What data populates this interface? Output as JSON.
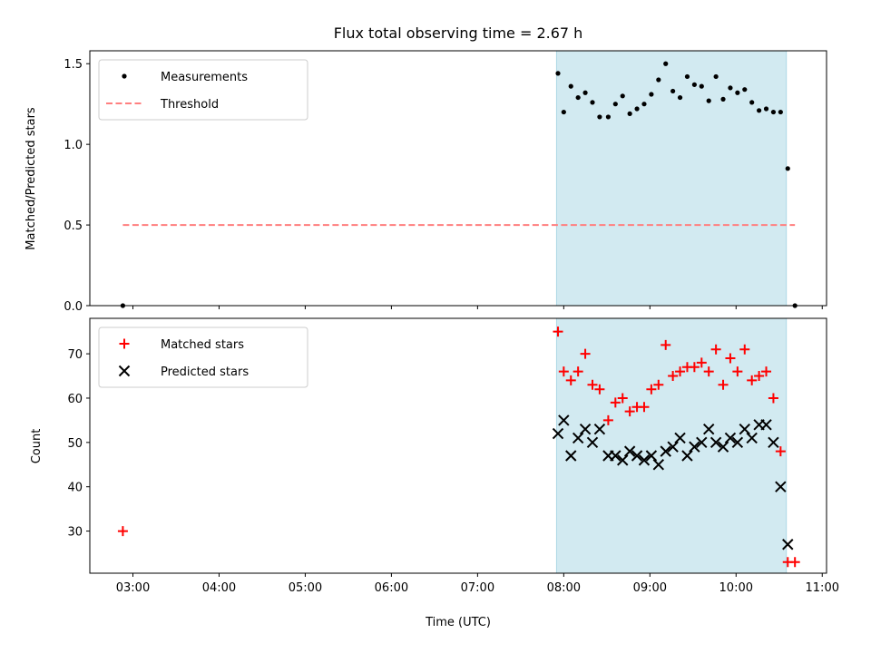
{
  "chart_data": [
    {
      "type": "scatter",
      "title": "Flux total observing time = 2.67 h",
      "ylabel": "Matched/Predicted stars",
      "xlim": [
        "02:30",
        "11:03"
      ],
      "ylim": [
        0,
        1.58
      ],
      "yticks": [
        "0.0",
        "0.5",
        "1.0",
        "1.5"
      ],
      "grid": false,
      "shaded_interval": {
        "start": "07:55",
        "end": "10:35",
        "color": "#add8e6"
      },
      "legend_position": "top-left",
      "series": [
        {
          "name": "Measurements",
          "marker": "dot",
          "color": "#000000",
          "points": [
            [
              "02:53",
              0.0
            ],
            [
              "07:56",
              1.44
            ],
            [
              "08:00",
              1.2
            ],
            [
              "08:05",
              1.36
            ],
            [
              "08:10",
              1.29
            ],
            [
              "08:15",
              1.32
            ],
            [
              "08:20",
              1.26
            ],
            [
              "08:25",
              1.17
            ],
            [
              "08:31",
              1.17
            ],
            [
              "08:36",
              1.25
            ],
            [
              "08:41",
              1.3
            ],
            [
              "08:46",
              1.19
            ],
            [
              "08:51",
              1.22
            ],
            [
              "08:56",
              1.25
            ],
            [
              "09:01",
              1.31
            ],
            [
              "09:06",
              1.4
            ],
            [
              "09:11",
              1.5
            ],
            [
              "09:16",
              1.33
            ],
            [
              "09:21",
              1.29
            ],
            [
              "09:26",
              1.42
            ],
            [
              "09:31",
              1.37
            ],
            [
              "09:36",
              1.36
            ],
            [
              "09:41",
              1.27
            ],
            [
              "09:46",
              1.42
            ],
            [
              "09:51",
              1.28
            ],
            [
              "09:56",
              1.35
            ],
            [
              "10:01",
              1.32
            ],
            [
              "10:06",
              1.34
            ],
            [
              "10:11",
              1.26
            ],
            [
              "10:16",
              1.21
            ],
            [
              "10:21",
              1.22
            ],
            [
              "10:26",
              1.2
            ],
            [
              "10:31",
              1.2
            ],
            [
              "10:36",
              0.85
            ],
            [
              "10:41",
              0.0
            ]
          ]
        },
        {
          "name": "Threshold",
          "style": "dashed",
          "color": "#ff7f7f",
          "points": [
            [
              "02:53",
              0.5
            ],
            [
              "10:41",
              0.5
            ]
          ]
        }
      ]
    },
    {
      "type": "scatter",
      "xlabel": "Time (UTC)",
      "ylabel": "Count",
      "xlim": [
        "02:30",
        "11:03"
      ],
      "ylim": [
        20.5,
        78
      ],
      "xticks": [
        "03:00",
        "04:00",
        "05:00",
        "06:00",
        "07:00",
        "08:00",
        "09:00",
        "10:00",
        "11:00"
      ],
      "yticks": [
        "30",
        "40",
        "50",
        "60",
        "70"
      ],
      "grid": false,
      "shaded_interval": {
        "start": "07:55",
        "end": "10:35",
        "color": "#add8e6"
      },
      "legend_position": "top-left",
      "series": [
        {
          "name": "Matched stars",
          "marker": "plus",
          "color": "#ff0000",
          "points": [
            [
              "02:53",
              30
            ],
            [
              "07:56",
              75
            ],
            [
              "08:00",
              66
            ],
            [
              "08:05",
              64
            ],
            [
              "08:10",
              66
            ],
            [
              "08:15",
              70
            ],
            [
              "08:20",
              63
            ],
            [
              "08:25",
              62
            ],
            [
              "08:31",
              55
            ],
            [
              "08:36",
              59
            ],
            [
              "08:41",
              60
            ],
            [
              "08:46",
              57
            ],
            [
              "08:51",
              58
            ],
            [
              "08:56",
              58
            ],
            [
              "09:01",
              62
            ],
            [
              "09:06",
              63
            ],
            [
              "09:11",
              72
            ],
            [
              "09:16",
              65
            ],
            [
              "09:21",
              66
            ],
            [
              "09:26",
              67
            ],
            [
              "09:31",
              67
            ],
            [
              "09:36",
              68
            ],
            [
              "09:41",
              66
            ],
            [
              "09:46",
              71
            ],
            [
              "09:51",
              63
            ],
            [
              "09:56",
              69
            ],
            [
              "10:01",
              66
            ],
            [
              "10:06",
              71
            ],
            [
              "10:11",
              64
            ],
            [
              "10:16",
              65
            ],
            [
              "10:21",
              66
            ],
            [
              "10:26",
              60
            ],
            [
              "10:31",
              48
            ],
            [
              "10:36",
              23
            ],
            [
              "10:41",
              23
            ]
          ]
        },
        {
          "name": "Predicted stars",
          "marker": "x",
          "color": "#000000",
          "points": [
            [
              "07:56",
              52
            ],
            [
              "08:00",
              55
            ],
            [
              "08:05",
              47
            ],
            [
              "08:10",
              51
            ],
            [
              "08:15",
              53
            ],
            [
              "08:20",
              50
            ],
            [
              "08:25",
              53
            ],
            [
              "08:31",
              47
            ],
            [
              "08:36",
              47
            ],
            [
              "08:41",
              46
            ],
            [
              "08:46",
              48
            ],
            [
              "08:51",
              47
            ],
            [
              "08:56",
              46
            ],
            [
              "09:01",
              47
            ],
            [
              "09:06",
              45
            ],
            [
              "09:11",
              48
            ],
            [
              "09:16",
              49
            ],
            [
              "09:21",
              51
            ],
            [
              "09:26",
              47
            ],
            [
              "09:31",
              49
            ],
            [
              "09:36",
              50
            ],
            [
              "09:41",
              53
            ],
            [
              "09:46",
              50
            ],
            [
              "09:51",
              49
            ],
            [
              "09:56",
              51
            ],
            [
              "10:01",
              50
            ],
            [
              "10:06",
              53
            ],
            [
              "10:11",
              51
            ],
            [
              "10:16",
              54
            ],
            [
              "10:21",
              54
            ],
            [
              "10:26",
              50
            ],
            [
              "10:31",
              40
            ],
            [
              "10:36",
              27
            ]
          ]
        }
      ]
    }
  ]
}
